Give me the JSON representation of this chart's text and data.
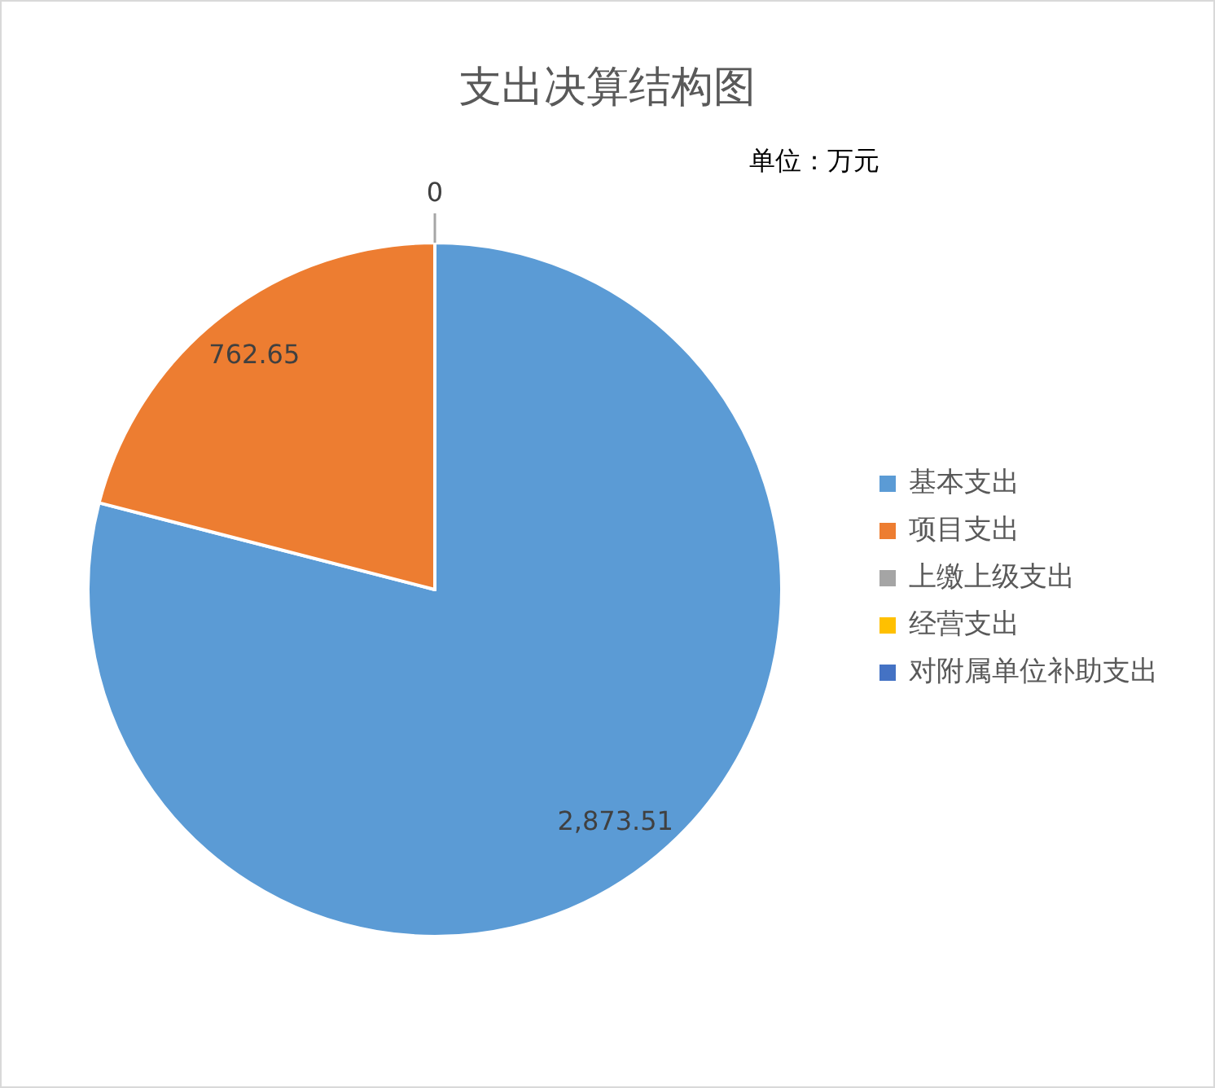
{
  "chart_data": {
    "type": "pie",
    "title": "支出决算结构图",
    "annotations": [
      "单位：万元"
    ],
    "categories": [
      "基本支出",
      "项目支出",
      "上缴上级支出",
      "经营支出",
      "对附属单位补助支出"
    ],
    "values": [
      2873.51,
      762.65,
      0,
      0,
      0
    ],
    "colors": [
      "#5b9bd5",
      "#ed7d31",
      "#a5a5a5",
      "#ffc000",
      "#4472c4"
    ],
    "value_labels": [
      "2,873.51",
      "762.65",
      "0",
      null,
      null
    ],
    "legend": "right"
  }
}
